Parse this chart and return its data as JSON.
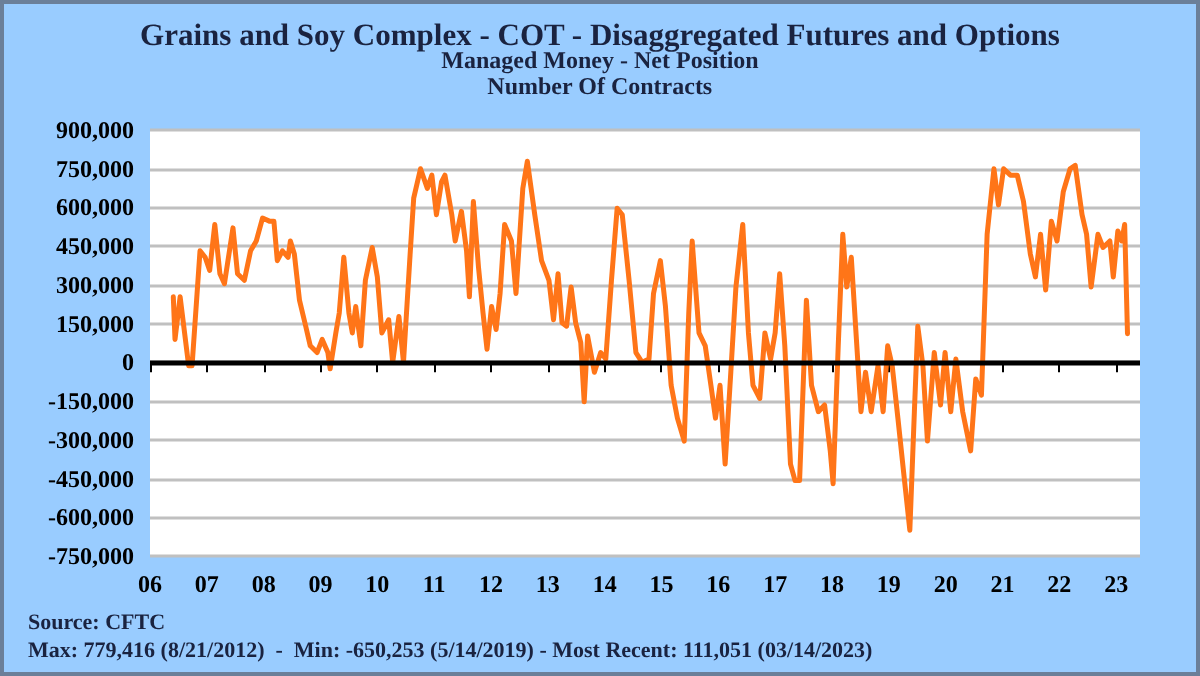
{
  "chart_data": {
    "type": "line",
    "title": "Grains and Soy Complex - COT - Disaggregated Futures and Options",
    "subtitle": "Managed Money - Net Position\nNumber Of Contracts",
    "annotations": [
      "Source: CFTC",
      "Max: 779,416 (8/21/2012)  -  Min: -650,253 (5/14/2019) - Most Recent: 111,051 (03/14/2023)"
    ],
    "x": [
      2006.41,
      2006.44,
      2006.53,
      2006.68,
      2006.74,
      2006.82,
      2006.88,
      2006.97,
      2007.05,
      2007.14,
      2007.23,
      2007.31,
      2007.46,
      2007.54,
      2007.66,
      2007.77,
      2007.87,
      2007.98,
      2008.1,
      2008.18,
      2008.24,
      2008.33,
      2008.43,
      2008.47,
      2008.54,
      2008.63,
      2008.74,
      2008.82,
      2008.94,
      2009.03,
      2009.13,
      2009.17,
      2009.27,
      2009.33,
      2009.41,
      2009.5,
      2009.56,
      2009.62,
      2009.71,
      2009.79,
      2009.91,
      2010.0,
      2010.08,
      2010.2,
      2010.27,
      2010.38,
      2010.46,
      2010.57,
      2010.64,
      2010.76,
      2010.88,
      2010.96,
      2011.04,
      2011.13,
      2011.19,
      2011.31,
      2011.37,
      2011.48,
      2011.57,
      2011.62,
      2011.69,
      2011.78,
      2011.86,
      2011.93,
      2012.01,
      2012.09,
      2012.16,
      2012.24,
      2012.36,
      2012.44,
      2012.56,
      2012.64,
      2012.77,
      2012.89,
      2013.02,
      2013.1,
      2013.18,
      2013.25,
      2013.33,
      2013.41,
      2013.49,
      2013.58,
      2013.64,
      2013.7,
      2013.82,
      2013.93,
      2014.02,
      2014.12,
      2014.22,
      2014.31,
      2014.43,
      2014.55,
      2014.66,
      2014.78,
      2014.86,
      2014.98,
      2015.07,
      2015.17,
      2015.28,
      2015.4,
      2015.48,
      2015.54,
      2015.66,
      2015.77,
      2015.87,
      2015.95,
      2016.03,
      2016.12,
      2016.22,
      2016.31,
      2016.43,
      2016.53,
      2016.61,
      2016.73,
      2016.82,
      2016.92,
      2017.0,
      2017.08,
      2017.17,
      2017.27,
      2017.35,
      2017.43,
      2017.55,
      2017.64,
      2017.76,
      2017.87,
      2017.97,
      2018.02,
      2018.11,
      2018.19,
      2018.26,
      2018.34,
      2018.43,
      2018.51,
      2018.59,
      2018.69,
      2018.81,
      2018.9,
      2018.98,
      2019.06,
      2019.16,
      2019.27,
      2019.37,
      2019.45,
      2019.51,
      2019.6,
      2019.68,
      2019.8,
      2019.91,
      2019.99,
      2020.09,
      2020.18,
      2020.3,
      2020.44,
      2020.53,
      2020.63,
      2020.73,
      2020.85,
      2020.93,
      2021.02,
      2021.14,
      2021.26,
      2021.37,
      2021.49,
      2021.58,
      2021.67,
      2021.76,
      2021.86,
      2021.96,
      2022.07,
      2022.19,
      2022.28,
      2022.4,
      2022.48,
      2022.56,
      2022.68,
      2022.77,
      2022.89,
      2022.95,
      2023.03,
      2023.1,
      2023.15,
      2023.2
    ],
    "series": [
      {
        "color": "#ff7518",
        "values": [
          254000,
          89000,
          254000,
          -13000,
          -13000,
          241000,
          432000,
          407000,
          356000,
          534000,
          343000,
          305000,
          521000,
          343000,
          318000,
          432000,
          470000,
          559000,
          547000,
          547000,
          394000,
          432000,
          407000,
          470000,
          420000,
          241000,
          140000,
          64000,
          38000,
          89000,
          38000,
          -25000,
          114000,
          191000,
          407000,
          191000,
          114000,
          216000,
          64000,
          318000,
          445000,
          331000,
          114000,
          165000,
          0,
          178000,
          0,
          394000,
          636000,
          750000,
          674000,
          725000,
          572000,
          699000,
          725000,
          572000,
          470000,
          585000,
          432000,
          254000,
          623000,
          369000,
          191000,
          51000,
          216000,
          127000,
          267000,
          534000,
          470000,
          267000,
          674000,
          779000,
          572000,
          394000,
          318000,
          165000,
          343000,
          153000,
          140000,
          292000,
          153000,
          76000,
          -153000,
          102000,
          -38000,
          38000,
          13000,
          318000,
          597000,
          572000,
          318000,
          38000,
          0,
          13000,
          267000,
          394000,
          216000,
          -89000,
          -216000,
          -305000,
          191000,
          470000,
          114000,
          64000,
          -89000,
          -216000,
          -89000,
          -394000,
          -38000,
          292000,
          534000,
          114000,
          -89000,
          -140000,
          114000,
          13000,
          114000,
          343000,
          64000,
          -394000,
          -458000,
          -458000,
          241000,
          -89000,
          -191000,
          -165000,
          -343000,
          -470000,
          64000,
          496000,
          292000,
          407000,
          89000,
          -191000,
          -38000,
          -191000,
          -13000,
          -191000,
          64000,
          -13000,
          -216000,
          -445000,
          -650000,
          -191000,
          140000,
          -13000,
          -305000,
          38000,
          -165000,
          38000,
          -191000,
          13000,
          -191000,
          -343000,
          -64000,
          -127000,
          496000,
          750000,
          610000,
          750000,
          725000,
          725000,
          623000,
          420000,
          331000,
          496000,
          280000,
          547000,
          470000,
          661000,
          750000,
          763000,
          572000,
          496000,
          292000,
          496000,
          445000,
          470000,
          331000,
          509000,
          470000,
          534000,
          111000
        ]
      }
    ],
    "xlim": [
      2006,
      2023.42
    ],
    "xticks": [
      {
        "value": 2006,
        "label": "06"
      },
      {
        "value": 2007,
        "label": "07"
      },
      {
        "value": 2008,
        "label": "08"
      },
      {
        "value": 2009,
        "label": "09"
      },
      {
        "value": 2010,
        "label": "10"
      },
      {
        "value": 2011,
        "label": "11"
      },
      {
        "value": 2012,
        "label": "12"
      },
      {
        "value": 2013,
        "label": "13"
      },
      {
        "value": 2014,
        "label": "14"
      },
      {
        "value": 2015,
        "label": "15"
      },
      {
        "value": 2016,
        "label": "16"
      },
      {
        "value": 2017,
        "label": "17"
      },
      {
        "value": 2018,
        "label": "18"
      },
      {
        "value": 2019,
        "label": "19"
      },
      {
        "value": 2020,
        "label": "20"
      },
      {
        "value": 2021,
        "label": "21"
      },
      {
        "value": 2022,
        "label": "22"
      },
      {
        "value": 2023,
        "label": "23"
      }
    ],
    "ylim": [
      -750000,
      900000
    ],
    "yticks": [
      {
        "value": -750000,
        "label": "-750,000"
      },
      {
        "value": -600000,
        "label": "-600,000"
      },
      {
        "value": -450000,
        "label": "-450,000"
      },
      {
        "value": -300000,
        "label": "-300,000"
      },
      {
        "value": -150000,
        "label": "-150,000"
      },
      {
        "value": 0,
        "label": "0"
      },
      {
        "value": 150000,
        "label": "150,000"
      },
      {
        "value": 300000,
        "label": "300,000"
      },
      {
        "value": 450000,
        "label": "450,000"
      },
      {
        "value": 600000,
        "label": "600,000"
      },
      {
        "value": 750000,
        "label": "750,000"
      },
      {
        "value": 900000,
        "label": "900,000"
      }
    ],
    "ref_lines": [
      {
        "axis": "y",
        "value": 0,
        "color": "#000000"
      }
    ],
    "grid": "y",
    "marker": "none",
    "line_style": "solid"
  }
}
